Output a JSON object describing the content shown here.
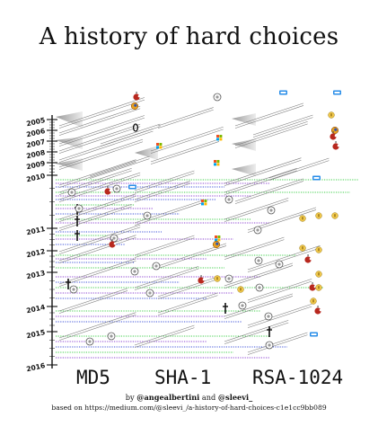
{
  "title": "A history of hard choices",
  "years": [
    "2005",
    "2006",
    "2007",
    "2008",
    "2009",
    "2010",
    "2011",
    "2012",
    "2013",
    "2014",
    "2015",
    "2016"
  ],
  "columns": [
    "MD5",
    "SHA-1",
    "RSA-1024"
  ],
  "credit": {
    "prefix": "by",
    "author1": "@angealbertini",
    "joiner": "and",
    "author2": "@sleevi_",
    "source": "based on https://medium.com/@sleevi_/a-history-of-hard-choices-c1e1cc9bb089"
  },
  "colors": {
    "ink": "#111111",
    "green": "#3fcf4a",
    "purple": "#8a3fd0",
    "blue": "#3a4fd8",
    "red_apple": "#b8281e",
    "firefox": "#e8a020",
    "microsoft": [
      "#f25022",
      "#7fba00",
      "#00a4ef",
      "#ffb900"
    ],
    "ie_blue": "#2a8ee8",
    "badge_yellow": "#f2c94c"
  },
  "icons": [
    "google-chrome-icon",
    "firefox-icon",
    "apple-icon",
    "microsoft-icon",
    "ie-icon",
    "ssl-badge-icon",
    "dagger-icon",
    "cert-icon"
  ]
}
